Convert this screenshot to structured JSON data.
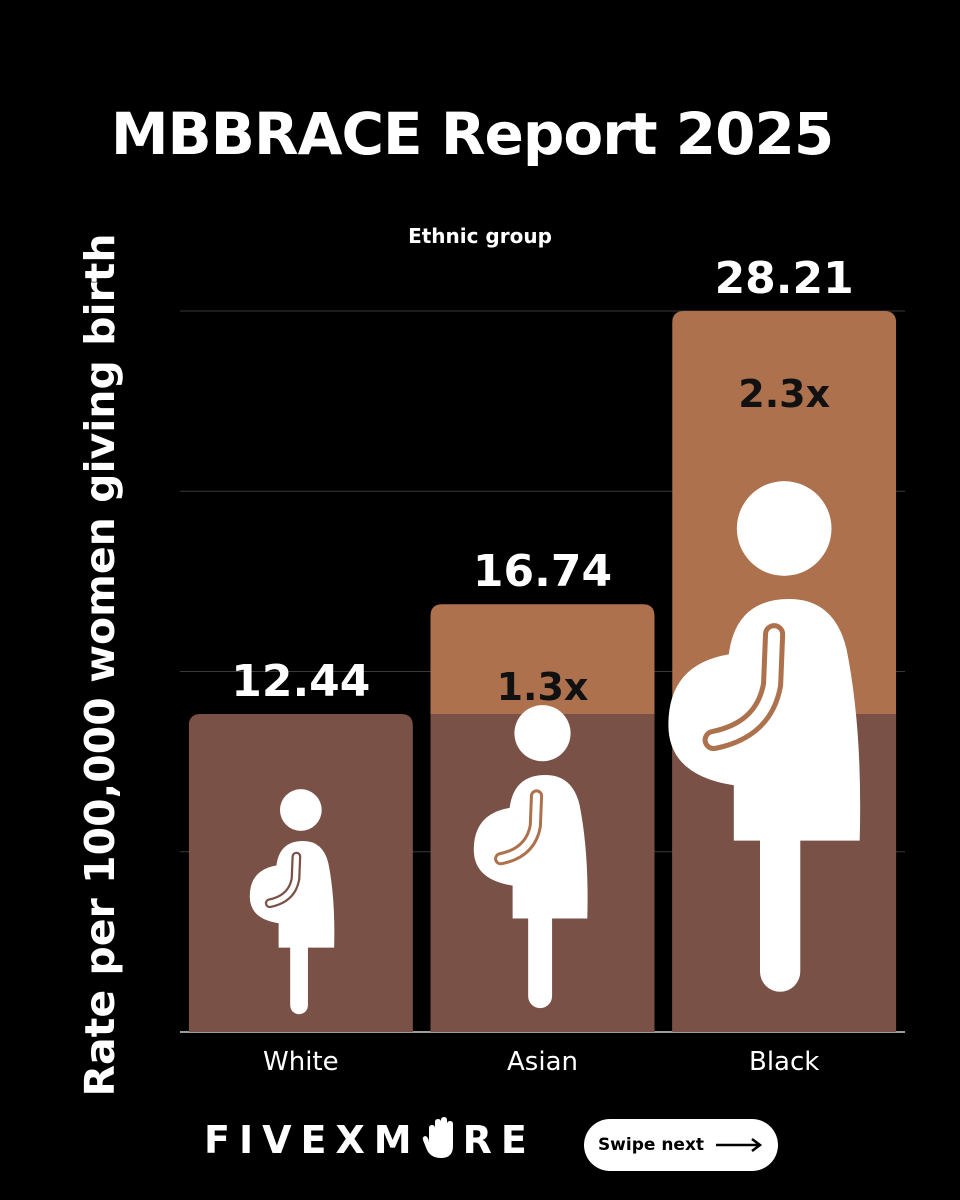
{
  "header": {
    "title": "MBBRACE Report 2025"
  },
  "brand": {
    "name_part1": "FIVEXM",
    "name_part2": "RE",
    "cta_label": "Swipe next"
  },
  "colors": {
    "background": "#000000",
    "bar_base": "#7a5146",
    "bar_excess": "#ad724d",
    "figure": "#ffffff",
    "gridline": "#3a3a3a"
  },
  "chart_data": {
    "type": "bar",
    "title": "MBBRACE Report 2025",
    "subtitle": "Ethnic group",
    "xlabel": "",
    "ylabel": "Rate per 100,000 women giving birth",
    "categories": [
      "White",
      "Asian",
      "Black"
    ],
    "values": [
      12.44,
      16.74,
      28.21
    ],
    "value_labels": [
      "12.44",
      "16.74",
      "28.21"
    ],
    "ratio_labels": [
      "",
      "1.3x",
      "2.3x"
    ],
    "baseline_value": 12.44,
    "ylim": [
      0,
      28.21
    ],
    "grid": true,
    "legend": "none"
  }
}
